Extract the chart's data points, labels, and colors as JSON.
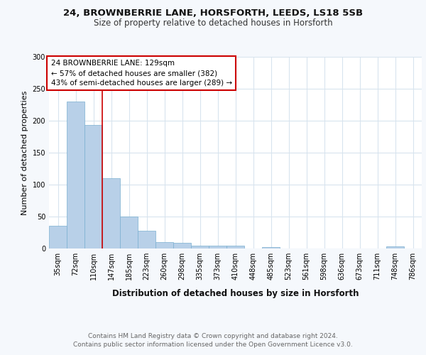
{
  "title1": "24, BROWNBERRIE LANE, HORSFORTH, LEEDS, LS18 5SB",
  "title2": "Size of property relative to detached houses in Horsforth",
  "xlabel": "Distribution of detached houses by size in Horsforth",
  "ylabel": "Number of detached properties",
  "footer1": "Contains HM Land Registry data © Crown copyright and database right 2024.",
  "footer2": "Contains public sector information licensed under the Open Government Licence v3.0.",
  "annotation_line1": "24 BROWNBERRIE LANE: 129sqm",
  "annotation_line2": "← 57% of detached houses are smaller (382)",
  "annotation_line3": "43% of semi-detached houses are larger (289) →",
  "bar_labels": [
    "35sqm",
    "72sqm",
    "110sqm",
    "147sqm",
    "185sqm",
    "223sqm",
    "260sqm",
    "298sqm",
    "335sqm",
    "373sqm",
    "410sqm",
    "448sqm",
    "485sqm",
    "523sqm",
    "561sqm",
    "598sqm",
    "636sqm",
    "673sqm",
    "711sqm",
    "748sqm",
    "786sqm"
  ],
  "bar_values": [
    36,
    230,
    193,
    110,
    50,
    28,
    10,
    9,
    4,
    5,
    5,
    0,
    2,
    0,
    0,
    0,
    0,
    0,
    0,
    3,
    0
  ],
  "bar_color": "#b8d0e8",
  "bar_edge_color": "#7aafd0",
  "red_line_x": 2.5,
  "ylim": [
    0,
    300
  ],
  "yticks": [
    0,
    50,
    100,
    150,
    200,
    250,
    300
  ],
  "bg_color": "#f5f8fc",
  "plot_bg_color": "#ffffff",
  "grid_color": "#d8e4ee",
  "annotation_box_facecolor": "#ffffff",
  "annotation_border_color": "#cc0000",
  "red_line_color": "#cc0000",
  "title1_fontsize": 9.5,
  "title2_fontsize": 8.5,
  "xlabel_fontsize": 8.5,
  "ylabel_fontsize": 8,
  "footer_fontsize": 6.5,
  "tick_fontsize": 7,
  "annotation_fontsize": 7.5
}
